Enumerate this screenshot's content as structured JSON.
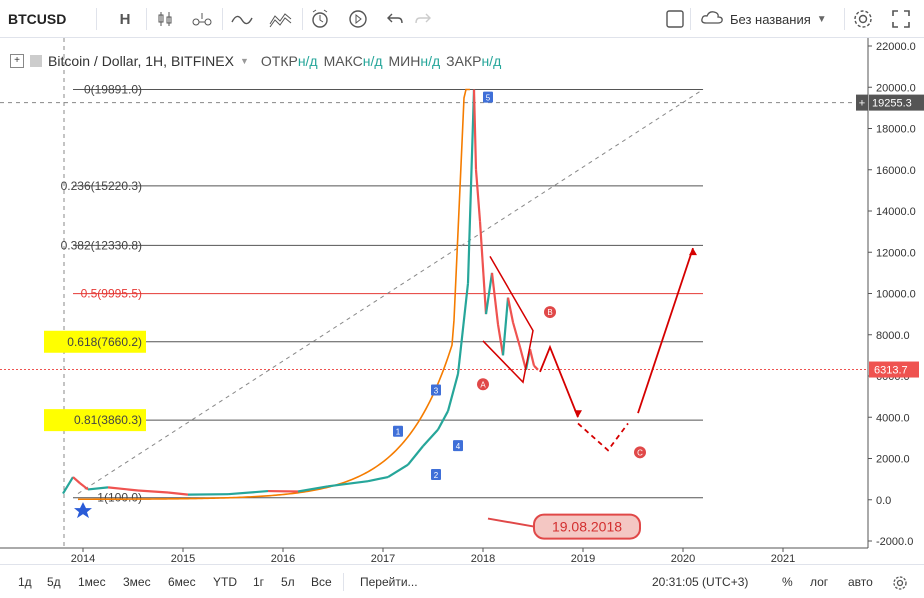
{
  "toolbar": {
    "symbol": "BTCUSD",
    "interval": "H",
    "layout_name": "Без названия",
    "icons": [
      "candles-icon",
      "compare-icon",
      "indicators-icon",
      "templates-icon",
      "alert-icon",
      "replay-icon",
      "undo-icon",
      "redo-icon",
      "square-icon",
      "cloud-icon",
      "settings-icon",
      "fullscreen-icon"
    ]
  },
  "legend": {
    "title": "Bitcoin / Dollar, 1H, BITFINEX",
    "open_label": "ОТКР",
    "open_val": "н/д",
    "high_label": "МАКС",
    "high_val": "н/д",
    "low_label": "МИН",
    "low_val": "н/д",
    "close_label": "ЗАКР",
    "close_val": "н/д"
  },
  "bottom": {
    "ranges": [
      "1д",
      "5д",
      "1мес",
      "3мес",
      "6мес",
      "YTD",
      "1г",
      "5л",
      "Все"
    ],
    "goto": "Перейти...",
    "clock": "20:31:05 (UTC+3)",
    "percent": "%",
    "log": "лог",
    "auto": "авто"
  },
  "chart_data": {
    "type": "line",
    "title": "",
    "xlabel": "",
    "ylabel": "",
    "x_ticks": [
      "2014",
      "2015",
      "2016",
      "2017",
      "2018",
      "2019",
      "2020",
      "2021"
    ],
    "y_ticks": [
      "22000.0",
      "20000.0",
      "18000.0",
      "16000.0",
      "14000.0",
      "12000.0",
      "10000.0",
      "8000.0",
      "6000.0",
      "4000.0",
      "2000.0",
      "0.0",
      "-2000.0"
    ],
    "ylim": [
      -2000,
      22000
    ],
    "xlim": [
      2013.3,
      2021.9
    ],
    "price_series": {
      "name": "",
      "x": [
        2013.85,
        2013.95,
        2014.02,
        2014.1,
        2014.3,
        2014.6,
        2014.9,
        2015.1,
        2015.5,
        2015.9,
        2016.2,
        2016.5,
        2016.9,
        2017.1,
        2017.3,
        2017.45,
        2017.6,
        2017.7,
        2017.8,
        2017.9,
        2017.96,
        2017.98,
        2018.02,
        2018.08,
        2018.14,
        2018.2,
        2018.25,
        2018.3,
        2018.35,
        2018.42,
        2018.48,
        2018.52,
        2018.56,
        2018.6
      ],
      "y": [
        300,
        1100,
        800,
        500,
        600,
        450,
        350,
        250,
        270,
        420,
        400,
        650,
        900,
        1100,
        1700,
        2600,
        3400,
        4300,
        6100,
        10500,
        19891,
        16000,
        13500,
        9000,
        11000,
        8500,
        7000,
        9800,
        8600,
        7400,
        6300,
        7300,
        6500,
        6300
      ]
    },
    "current_price": "6313.7",
    "crosshair_price": "19255.3",
    "fib_levels": [
      {
        "label": "0(19891.0)",
        "value": 19891.0
      },
      {
        "label": "0.236(15220.3)",
        "value": 15220.3
      },
      {
        "label": "0.382(12330.8)",
        "value": 12330.8
      },
      {
        "label": "0.5(9995.5)",
        "value": 9995.5
      },
      {
        "label": "0.618(7660.2)",
        "value": 7660.2
      },
      {
        "label": "0.81(3860.3)",
        "value": 3860.3
      },
      {
        "label": "1(100.0)",
        "value": 100.0
      }
    ],
    "wave_labels": [
      {
        "text": "1",
        "x": 2017.2,
        "y": 3300
      },
      {
        "text": "2",
        "x": 2017.58,
        "y": 1200
      },
      {
        "text": "3",
        "x": 2017.58,
        "y": 5300
      },
      {
        "text": "4",
        "x": 2017.8,
        "y": 2600
      },
      {
        "text": "5",
        "x": 2018.1,
        "y": 19500
      }
    ],
    "abc_labels": [
      {
        "text": "A",
        "x": 2018.05,
        "y": 5600
      },
      {
        "text": "B",
        "x": 2018.72,
        "y": 9100
      },
      {
        "text": "C",
        "x": 2019.62,
        "y": 2300
      }
    ],
    "date_annotation": "19.08.2018",
    "colors": {
      "up": "#26a69a",
      "down": "#ef5350",
      "fib_red": "#e53935",
      "highlight": "#ffff00",
      "arrow": "#d50000",
      "curve": "#f57c00"
    }
  }
}
